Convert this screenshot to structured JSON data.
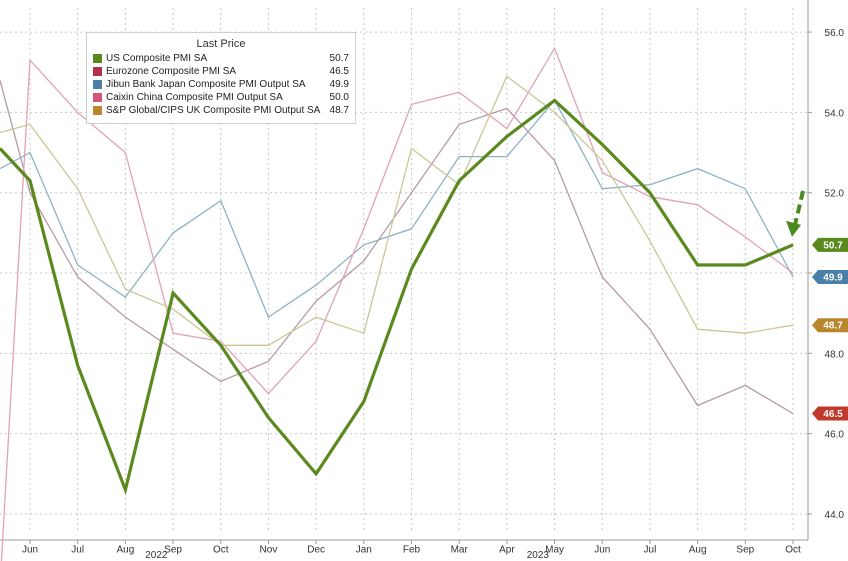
{
  "chart_data": {
    "type": "line",
    "x": [
      "Jun",
      "Jul",
      "Aug",
      "Sep",
      "Oct",
      "Nov",
      "Dec",
      "Jan",
      "Feb",
      "Mar",
      "Apr",
      "May",
      "Jun",
      "Jul",
      "Aug",
      "Sep",
      "Oct"
    ],
    "x_year_labels": [
      {
        "label": "2022",
        "at_index": 3
      },
      {
        "label": "2023",
        "at_index": 11
      }
    ],
    "ylim": [
      43.6,
      56.6
    ],
    "yticks": [
      44.0,
      46.0,
      48.0,
      50.0,
      52.0,
      54.0,
      56.0
    ],
    "y_axis_side": "right",
    "grid": true,
    "legend": {
      "title": "Last Price",
      "placement": "top-left",
      "entries": [
        {
          "name": "US Composite PMI SA",
          "value": "50.7"
        },
        {
          "name": "Eurozone Composite PMI SA",
          "value": "46.5"
        },
        {
          "name": "Jibun Bank Japan Composite PMI Output SA",
          "value": "49.9"
        },
        {
          "name": "Caixin China Composite PMI Output SA",
          "value": "50.0"
        },
        {
          "name": "S&P Global/CIPS UK Composite PMI Output SA",
          "value": "48.7"
        }
      ]
    },
    "series": [
      {
        "name": "US Composite PMI SA",
        "color": "#5a8a1e",
        "bold": true,
        "start": 53.1,
        "values": [
          52.3,
          47.7,
          44.6,
          49.5,
          48.2,
          46.4,
          45.0,
          46.8,
          50.1,
          52.3,
          53.4,
          54.3,
          53.2,
          52.0,
          50.2,
          50.2,
          50.7
        ]
      },
      {
        "name": "Eurozone Composite PMI SA",
        "color": "#b79aa6",
        "bold": false,
        "start": 54.8,
        "values": [
          52.0,
          49.9,
          48.9,
          48.1,
          47.3,
          47.8,
          49.3,
          50.3,
          52.0,
          53.7,
          54.1,
          52.8,
          49.9,
          48.6,
          46.7,
          47.2,
          46.5
        ]
      },
      {
        "name": "Jibun Bank Japan Composite PMI Output SA",
        "color": "#8ab4c6",
        "bold": false,
        "start": 52.6,
        "values": [
          53.0,
          50.2,
          49.4,
          51.0,
          51.8,
          48.9,
          49.7,
          50.7,
          51.1,
          52.9,
          52.9,
          54.3,
          52.1,
          52.2,
          52.6,
          52.1,
          49.9
        ]
      },
      {
        "name": "Caixin China Composite PMI Output SA",
        "color": "#e0a3b6",
        "bold": false,
        "start": 42.2,
        "values": [
          55.3,
          54.0,
          53.0,
          48.5,
          48.3,
          47.0,
          48.3,
          51.1,
          54.2,
          54.5,
          53.6,
          55.6,
          52.5,
          51.9,
          51.7,
          50.9,
          50.0
        ]
      },
      {
        "name": "S&P Global/CIPS UK Composite PMI Output SA",
        "color": "#cbc795",
        "bold": false,
        "start": 53.5,
        "values": [
          53.7,
          52.1,
          49.6,
          49.1,
          48.2,
          48.2,
          48.9,
          48.5,
          53.1,
          52.2,
          54.9,
          54.0,
          52.8,
          50.8,
          48.6,
          48.5,
          48.7
        ]
      }
    ],
    "end_labels": [
      {
        "text": "50.7",
        "value": 50.7,
        "color": "#5a8a1e"
      },
      {
        "text": "49.9",
        "value": 49.9,
        "color": "#4a7fa8"
      },
      {
        "text": "48.7",
        "value": 48.7,
        "color": "#b8862d"
      },
      {
        "text": "46.5",
        "value": 46.5,
        "color": "#c0392b"
      }
    ]
  },
  "legend_colors": [
    "#5a8a1e",
    "#b0334b",
    "#4a7fa8",
    "#d4557a",
    "#b8862d"
  ],
  "annotation": {
    "type": "dashed-arrow",
    "color": "#4a8a1e",
    "target_value": 50.7
  }
}
